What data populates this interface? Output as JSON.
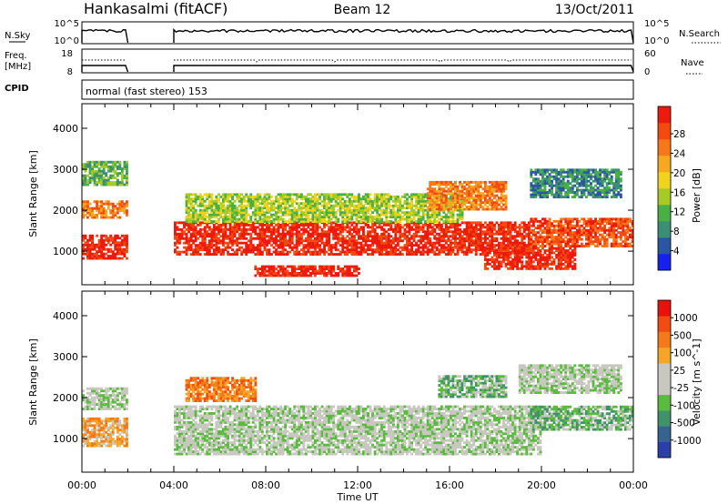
{
  "header": {
    "station": "Hankasalmi (fitACF)",
    "beam": "Beam 12",
    "date": "13/Oct/2011"
  },
  "strips": {
    "sky": {
      "left_label": "N.Sky",
      "right_label": "N.Search",
      "left_ticks": [
        "10^5",
        "10^0"
      ],
      "right_ticks": [
        "10^5",
        "10^0"
      ]
    },
    "freq": {
      "left_label_line1": "Freq.",
      "left_label_line2": "[MHz]",
      "right_label": "Nave",
      "left_ticks": [
        "18",
        "8"
      ],
      "right_ticks": [
        "60",
        "0"
      ]
    },
    "cpid": {
      "label": "CPID",
      "program": "normal (fast stereo) 153"
    }
  },
  "chart_data": [
    {
      "type": "heatmap",
      "panel": "power",
      "ylabel": "Slant Range [km]",
      "xlabel": "Time UT",
      "xlim_hours": [
        0,
        24
      ],
      "x_tick_labels": [
        "00:00",
        "04:00",
        "08:00",
        "12:00",
        "16:00",
        "20:00",
        "00:00"
      ],
      "ylim_km": [
        180,
        4600
      ],
      "y_ticks": [
        1000,
        2000,
        3000,
        4000
      ],
      "data_gap_hours": [
        2.0,
        4.0
      ],
      "colorbar": {
        "label": "Power [dB]",
        "ticks": [
          "4",
          "8",
          "12",
          "16",
          "20",
          "24",
          "28"
        ],
        "colors": [
          "#1522ee",
          "#2b56a4",
          "#3a8f74",
          "#49b044",
          "#a6ca26",
          "#f1d21e",
          "#f6a820",
          "#f77819",
          "#f44a12",
          "#ec1b0c"
        ]
      },
      "echo_regions": [
        {
          "t0": 0.0,
          "t1": 2.0,
          "r0": 800,
          "r1": 1400,
          "level": 9
        },
        {
          "t0": 0.0,
          "t1": 2.0,
          "r0": 1800,
          "r1": 2200,
          "level": 7
        },
        {
          "t0": 0.0,
          "t1": 2.0,
          "r0": 2600,
          "r1": 3200,
          "level": 3
        },
        {
          "t0": 4.0,
          "t1": 19.5,
          "r0": 900,
          "r1": 1700,
          "level": 9
        },
        {
          "t0": 4.5,
          "t1": 16.5,
          "r0": 1700,
          "r1": 2400,
          "level": 4
        },
        {
          "t0": 7.5,
          "t1": 12.0,
          "r0": 380,
          "r1": 650,
          "level": 9
        },
        {
          "t0": 15.0,
          "t1": 18.5,
          "r0": 2000,
          "r1": 2700,
          "level": 7
        },
        {
          "t0": 17.5,
          "t1": 21.5,
          "r0": 550,
          "r1": 1100,
          "level": 9
        },
        {
          "t0": 19.5,
          "t1": 24.0,
          "r0": 1100,
          "r1": 1800,
          "level": 8
        },
        {
          "t0": 19.5,
          "t1": 23.5,
          "r0": 2300,
          "r1": 3000,
          "level": 2
        }
      ]
    },
    {
      "type": "heatmap",
      "panel": "velocity",
      "ylabel": "Slant Range [km]",
      "xlabel": "Time UT",
      "xlim_hours": [
        0,
        24
      ],
      "x_tick_labels": [
        "00:00",
        "04:00",
        "08:00",
        "12:00",
        "16:00",
        "20:00",
        "00:00"
      ],
      "ylim_km": [
        180,
        4600
      ],
      "y_ticks": [
        1000,
        2000,
        3000,
        4000
      ],
      "data_gap_hours": [
        2.0,
        4.0
      ],
      "colorbar": {
        "label": "Velocity [m s^-1]",
        "ticks": [
          "1000",
          "500",
          "100",
          "25",
          "-25",
          "-100",
          "-500",
          "-1000"
        ],
        "colors": [
          "#2a3fa8",
          "#36648e",
          "#40926a",
          "#5abb3f",
          "#c8c8c0",
          "#c8c8c0",
          "#f7a526",
          "#f47a19",
          "#f24c12",
          "#e8110c"
        ]
      },
      "echo_regions": [
        {
          "t0": 0.0,
          "t1": 2.0,
          "r0": 800,
          "r1": 1500,
          "level": 6
        },
        {
          "t0": 0.0,
          "t1": 2.0,
          "r0": 1700,
          "r1": 2200,
          "level": 4
        },
        {
          "t0": 4.0,
          "t1": 20.0,
          "r0": 600,
          "r1": 1800,
          "level": 4
        },
        {
          "t0": 4.5,
          "t1": 7.5,
          "r0": 1900,
          "r1": 2500,
          "level": 7
        },
        {
          "t0": 15.5,
          "t1": 18.5,
          "r0": 2000,
          "r1": 2500,
          "level": 3
        },
        {
          "t0": 19.5,
          "t1": 24.0,
          "r0": 1200,
          "r1": 1800,
          "level": 3
        },
        {
          "t0": 19.0,
          "t1": 23.5,
          "r0": 2100,
          "r1": 2800,
          "level": 4
        }
      ]
    }
  ]
}
